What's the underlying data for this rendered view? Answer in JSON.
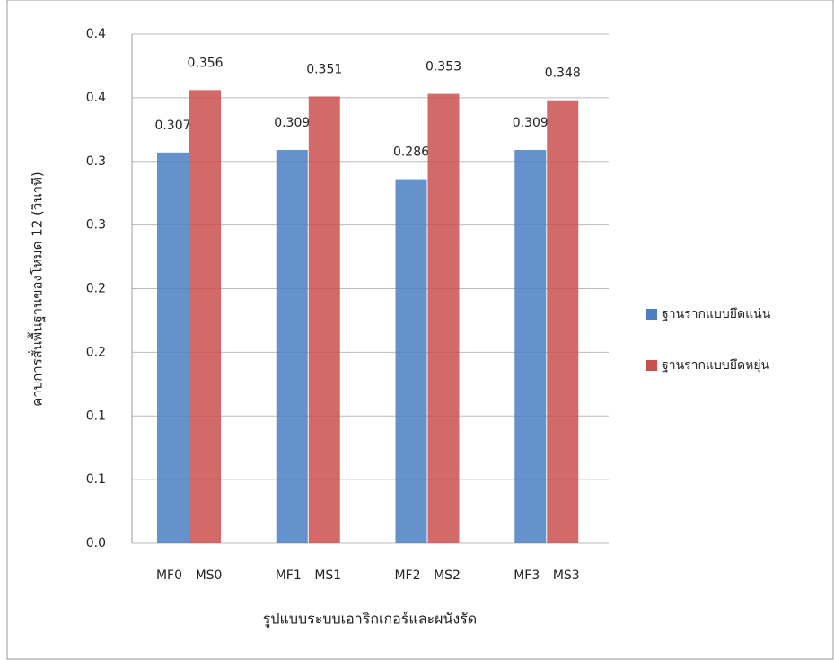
{
  "chart_data": {
    "type": "bar",
    "y_label": "คาบการสั่นพื้นฐานของโหมด 12 (วินาที)",
    "x_label": "รูปแบบระบบเอาริกเกอร์และผนังรัด",
    "series": [
      {
        "name": "ฐานรากแบบยึดแน่น",
        "color": "#4a7fc1",
        "labels": [
          "MF0",
          "MF1",
          "MF2",
          "MF3"
        ],
        "values": [
          0.307,
          0.309,
          0.286,
          0.309
        ]
      },
      {
        "name": "ฐานรากแบบยึดหยุ่น",
        "color": "#c9504f",
        "labels": [
          "MS0",
          "MS1",
          "MS2",
          "MS3"
        ],
        "values": [
          0.356,
          0.351,
          0.353,
          0.348
        ]
      }
    ],
    "ylim": [
      0,
      0.4
    ],
    "yticks": [
      {
        "value": 0,
        "label": "0.0"
      },
      {
        "value": 0.05,
        "label": "0.1"
      },
      0.1,
      {
        "value": 0.15,
        "label": "0.2"
      },
      0.2,
      {
        "value": 0.25,
        "label": "0.3"
      },
      0.3,
      {
        "value": 0.35,
        "label": "0.4"
      },
      0.4
    ],
    "grid": true,
    "legend": "right"
  }
}
